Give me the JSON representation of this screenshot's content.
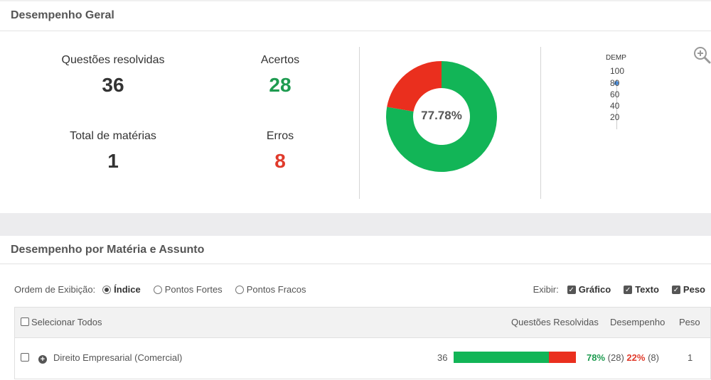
{
  "overview": {
    "title": "Desempenho Geral",
    "questions_label": "Questões resolvidas",
    "questions_value": "36",
    "correct_label": "Acertos",
    "correct_value": "28",
    "subjects_label": "Total de matérias",
    "subjects_value": "1",
    "errors_label": "Erros",
    "errors_value": "8",
    "donut": {
      "center_label": "77.78%",
      "correct_fraction": 0.7778,
      "correct_color": "#12b557",
      "error_color": "#ea2f1e"
    },
    "gauge": {
      "title": "DEMP",
      "ticks": [
        "100",
        "80",
        "60",
        "40",
        "20"
      ]
    },
    "zoom_icon": "zoom-in-icon"
  },
  "detail": {
    "title": "Desempenho por Matéria e Assunto",
    "order_label": "Ordem de Exibição:",
    "order_options": [
      "Índice",
      "Pontos Fortes",
      "Pontos Fracos"
    ],
    "order_selected": "Índice",
    "show_label": "Exibir:",
    "show_options": [
      "Gráfico",
      "Texto",
      "Peso"
    ],
    "table": {
      "select_all": "Selecionar Todos",
      "col_questions": "Questões Resolvidas",
      "col_performance": "Desempenho",
      "col_weight": "Peso",
      "rows": [
        {
          "subject": "Direito Empresarial (Comercial)",
          "questions": "36",
          "correct_fraction": 0.78,
          "correct_pct": "78%",
          "correct_count": "(28)",
          "error_pct": "22%",
          "error_count": "(8)",
          "weight": "1"
        }
      ]
    }
  }
}
